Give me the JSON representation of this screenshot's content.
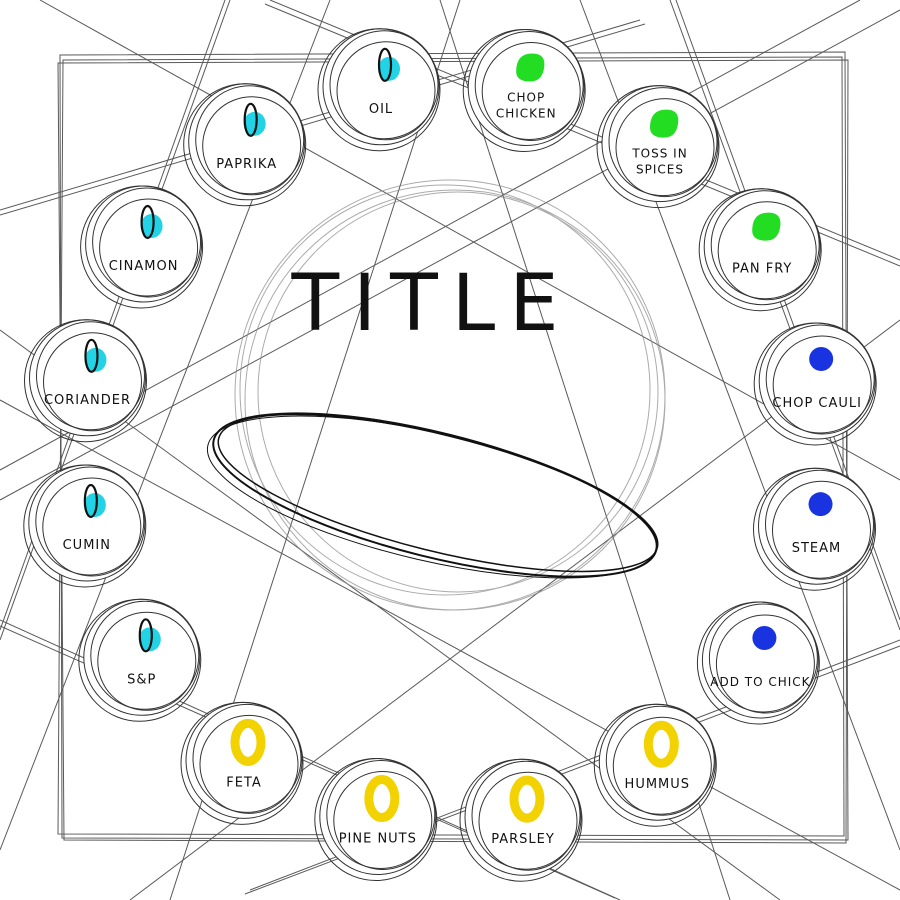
{
  "title": "TITLE",
  "colors": {
    "spice": "#22d3e6",
    "protein": "#22dd22",
    "vegetable": "#1a33e0",
    "garnish": "#f2d200",
    "ink": "#111111"
  },
  "nodes": [
    {
      "label": "OIL",
      "group": "spice",
      "icon": "cyan-dot-with-oval"
    },
    {
      "label": "CHOP CHICKEN",
      "group": "protein",
      "icon": "green-blob"
    },
    {
      "label": "TOSS IN SPICES",
      "group": "protein",
      "icon": "green-blob"
    },
    {
      "label": "PAN FRY",
      "group": "protein",
      "icon": "green-blob"
    },
    {
      "label": "CHOP CAULI",
      "group": "vegetable",
      "icon": "blue-dot"
    },
    {
      "label": "STEAM",
      "group": "vegetable",
      "icon": "blue-dot"
    },
    {
      "label": "ADD TO CHICK",
      "group": "vegetable",
      "icon": "blue-dot"
    },
    {
      "label": "HUMMUS",
      "group": "garnish",
      "icon": "yellow-scribble"
    },
    {
      "label": "PARSLEY",
      "group": "garnish",
      "icon": "yellow-scribble"
    },
    {
      "label": "PINE NUTS",
      "group": "garnish",
      "icon": "yellow-scribble"
    },
    {
      "label": "FETA",
      "group": "garnish",
      "icon": "yellow-scribble"
    },
    {
      "label": "S&P",
      "group": "spice",
      "icon": "cyan-dot-with-oval"
    },
    {
      "label": "CUMIN",
      "group": "spice",
      "icon": "cyan-dot-with-oval"
    },
    {
      "label": "CORIANDER",
      "group": "spice",
      "icon": "cyan-dot-with-oval"
    },
    {
      "label": "CINAMON",
      "group": "spice",
      "icon": "cyan-dot-with-oval"
    },
    {
      "label": "PAPRIKA",
      "group": "spice",
      "icon": "cyan-dot-with-oval"
    }
  ]
}
